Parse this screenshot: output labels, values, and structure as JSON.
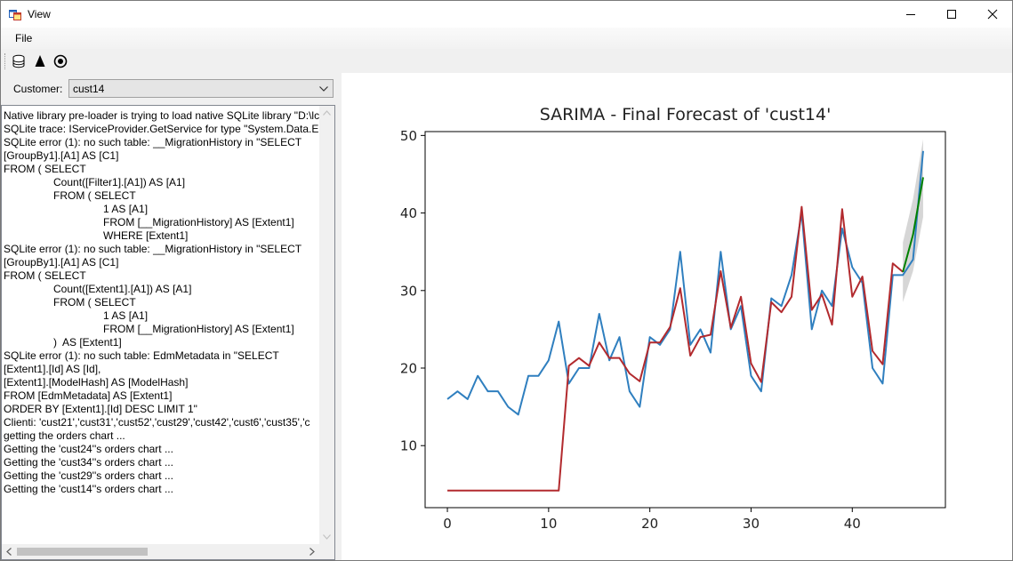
{
  "window": {
    "title": "View"
  },
  "menu": {
    "file": "File"
  },
  "toolbar": {
    "icons": [
      "database-icon",
      "triangle-icon",
      "radio-target-icon"
    ]
  },
  "customer": {
    "label": "Customer:",
    "selected": "cust14"
  },
  "log": {
    "lines": [
      "Native library pre-loader is trying to load native SQLite library \"D:\\lc",
      "SQLite trace: IServiceProvider.GetService for type \"System.Data.En",
      "SQLite error (1): no such table: __MigrationHistory in \"SELECT",
      "[GroupBy1].[A1] AS [C1]",
      "FROM ( SELECT",
      "\tCount([Filter1].[A1]) AS [A1]",
      "\tFROM ( SELECT",
      "\t\t1 AS [A1]",
      "\t\tFROM [__MigrationHistory] AS [Extent1]",
      "\t\tWHERE [Extent1]",
      "SQLite error (1): no such table: __MigrationHistory in \"SELECT",
      "[GroupBy1].[A1] AS [C1]",
      "FROM ( SELECT",
      "\tCount([Extent1].[A1]) AS [A1]",
      "\tFROM ( SELECT",
      "\t\t1 AS [A1]",
      "\t\tFROM [__MigrationHistory] AS [Extent1]",
      "\t)  AS [Extent1]",
      "SQLite error (1): no such table: EdmMetadata in \"SELECT",
      "[Extent1].[Id] AS [Id],",
      "[Extent1].[ModelHash] AS [ModelHash]",
      "FROM [EdmMetadata] AS [Extent1]",
      "ORDER BY [Extent1].[Id] DESC LIMIT 1\"",
      "Clienti: 'cust21','cust31','cust52','cust29','cust42','cust6','cust35','c",
      "getting the orders chart ...",
      "Getting the 'cust24''s orders chart ...",
      "Getting the 'cust34''s orders chart ...",
      "Getting the 'cust29''s orders chart ...",
      "Getting the 'cust14''s orders chart ..."
    ]
  },
  "colors": {
    "actual": "#2f7fbf",
    "fitted": "#b22a2e",
    "forecast": "#008000",
    "ci": "#c8c8c8"
  },
  "chart_data": {
    "type": "line",
    "title": "SARIMA - Final Forecast of 'cust14'",
    "xlabel": "",
    "ylabel": "",
    "xlim": [
      -2.2,
      49.2
    ],
    "ylim": [
      2,
      50.5
    ],
    "xticks": [
      0,
      10,
      20,
      30,
      40
    ],
    "yticks": [
      10,
      20,
      30,
      40,
      50
    ],
    "grid": false,
    "series": [
      {
        "key": "actual",
        "x": [
          0,
          1,
          2,
          3,
          4,
          5,
          6,
          7,
          8,
          9,
          10,
          11,
          12,
          13,
          14,
          15,
          16,
          17,
          18,
          19,
          20,
          21,
          22,
          23,
          24,
          25,
          26,
          27,
          28,
          29,
          30,
          31,
          32,
          33,
          34,
          35,
          36,
          37,
          38,
          39,
          40,
          41,
          42,
          43,
          44,
          45,
          46,
          47
        ],
        "values": [
          16,
          17,
          16,
          19,
          17,
          17,
          15,
          14,
          19,
          19,
          21,
          26,
          18,
          20,
          20,
          27,
          21,
          24,
          17,
          15,
          24,
          23,
          25,
          35,
          23,
          25,
          22,
          35,
          25,
          28,
          19,
          17,
          29,
          28,
          32,
          40,
          25,
          30,
          28,
          38,
          33,
          31,
          20,
          18,
          32,
          32,
          34,
          48
        ]
      },
      {
        "key": "fitted",
        "x": [
          0,
          1,
          2,
          3,
          4,
          5,
          6,
          7,
          8,
          9,
          10,
          11,
          12,
          13,
          14,
          15,
          16,
          17,
          18,
          19,
          20,
          21,
          22,
          23,
          24,
          25,
          26,
          27,
          28,
          29,
          30,
          31,
          32,
          33,
          34,
          35,
          36,
          37,
          38,
          39,
          40,
          41,
          42,
          43,
          44,
          45
        ],
        "values": [
          4.2,
          4.2,
          4.2,
          4.2,
          4.2,
          4.2,
          4.2,
          4.2,
          4.2,
          4.2,
          4.2,
          4.2,
          20.3,
          21.3,
          20.3,
          23.3,
          21.3,
          21.3,
          19.3,
          18.3,
          23.3,
          23.3,
          25.3,
          30.3,
          21.6,
          24,
          24.3,
          32.5,
          25.2,
          29.2,
          20.6,
          18.2,
          28.5,
          27.2,
          29.2,
          40.8,
          27.5,
          29.5,
          25.6,
          40.5,
          29.2,
          31.8,
          22.2,
          20.5,
          33.5,
          32.4
        ]
      },
      {
        "key": "forecast",
        "x": [
          45,
          46,
          47
        ],
        "values": [
          32.4,
          37.2,
          44.6
        ]
      }
    ],
    "ci": {
      "x": [
        45,
        46,
        47
      ],
      "lower": [
        28.5,
        32.5,
        39.5
      ],
      "upper": [
        36.2,
        41.8,
        49.5
      ]
    }
  }
}
